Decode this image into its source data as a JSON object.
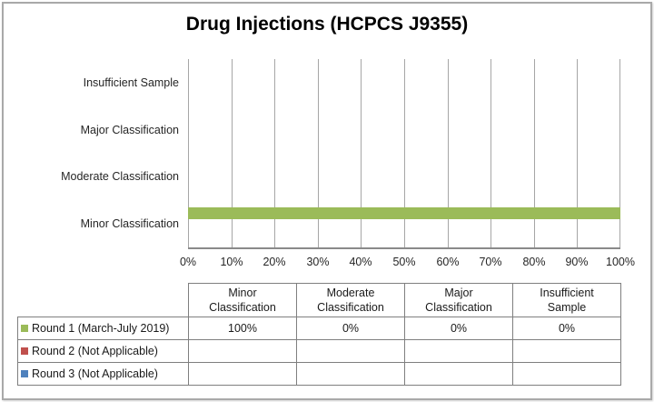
{
  "chart_data": {
    "type": "bar",
    "orientation": "horizontal",
    "title": "Drug Injections (HCPCS J9355)",
    "categories": [
      "Insufficient Sample",
      "Major Classification",
      "Moderate Classification",
      "Minor Classification"
    ],
    "x_ticks": [
      "0%",
      "10%",
      "20%",
      "30%",
      "40%",
      "50%",
      "60%",
      "70%",
      "80%",
      "90%",
      "100%"
    ],
    "xlim": [
      0,
      100
    ],
    "grid": "vertical gridlines every 10%",
    "legend_position": "table below chart",
    "series": [
      {
        "name": "Round 1 (March-July 2019)",
        "color": "#9BBB59",
        "values": [
          0,
          0,
          0,
          100
        ]
      },
      {
        "name": "Round 2 (Not Applicable)",
        "color": "#C0504D",
        "values": null
      },
      {
        "name": "Round 3 (Not Applicable)",
        "color": "#4F81BD",
        "values": null
      }
    ]
  },
  "table": {
    "column_headers": [
      "Minor Classification",
      "Moderate Classification",
      "Major Classification",
      "Insufficient Sample"
    ],
    "rows": [
      {
        "label": "Round 1 (March-July 2019)",
        "swatch_color": "#9BBB59",
        "cells": [
          "100%",
          "0%",
          "0%",
          "0%"
        ]
      },
      {
        "label": "Round 2 (Not Applicable)",
        "swatch_color": "#C0504D",
        "cells": [
          "",
          "",
          "",
          ""
        ]
      },
      {
        "label": "Round 3 (Not Applicable)",
        "swatch_color": "#4F81BD",
        "cells": [
          "",
          "",
          "",
          ""
        ]
      }
    ]
  },
  "colors": {
    "round1_green": "#9BBB59",
    "round2_red": "#C0504D",
    "round3_blue": "#4F81BD",
    "gridline_gray": "#A6A6A6",
    "axis_gray": "#8A8A8A",
    "table_border_gray": "#7F7F7F",
    "outer_border_gray": "#A9A9A9"
  }
}
